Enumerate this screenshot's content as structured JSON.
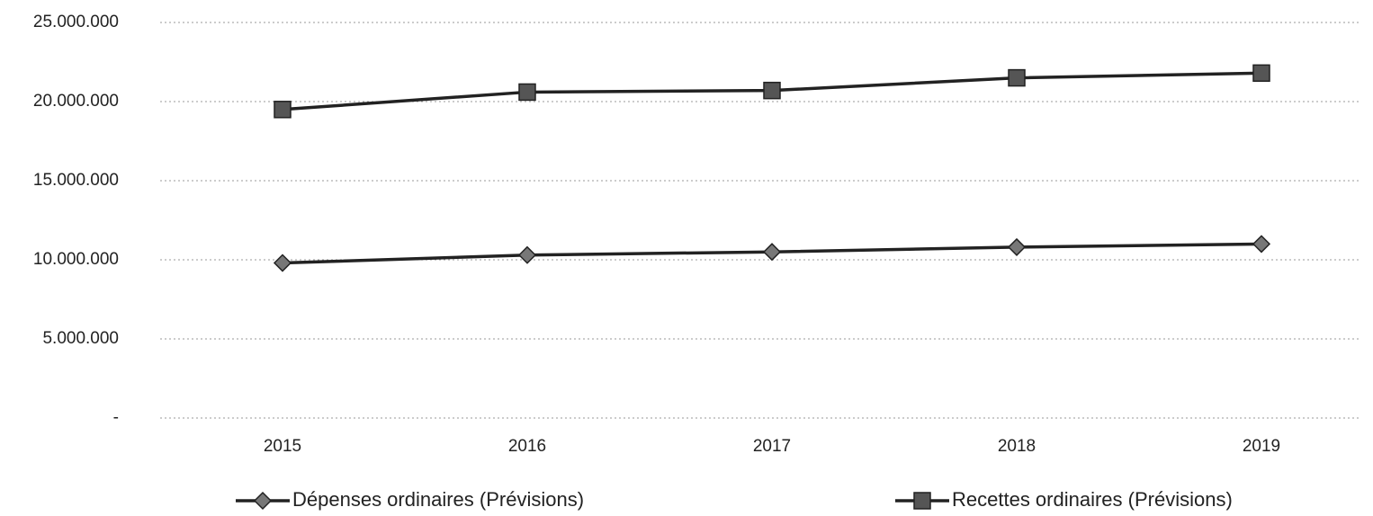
{
  "chart_data": {
    "type": "line",
    "categories": [
      "2015",
      "2016",
      "2017",
      "2018",
      "2019"
    ],
    "series": [
      {
        "name": "Dépenses ordinaires (Prévisions)",
        "color": "#222222",
        "marker": "diamond",
        "values": [
          9800000,
          10300000,
          10500000,
          10800000,
          11000000
        ]
      },
      {
        "name": "Recettes ordinaires (Prévisions)",
        "color": "#222222",
        "marker": "square",
        "values": [
          19500000,
          20600000,
          20700000,
          21500000,
          21800000
        ]
      }
    ],
    "ylim": [
      0,
      25000000
    ],
    "yticks": [
      {
        "value": 0,
        "label": "-"
      },
      {
        "value": 5000000,
        "label": "5.000.000"
      },
      {
        "value": 10000000,
        "label": "10.000.000"
      },
      {
        "value": 15000000,
        "label": "15.000.000"
      },
      {
        "value": 20000000,
        "label": "20.000.000"
      },
      {
        "value": 25000000,
        "label": "25.000.000"
      }
    ],
    "grid": true,
    "legend": "bottom"
  }
}
